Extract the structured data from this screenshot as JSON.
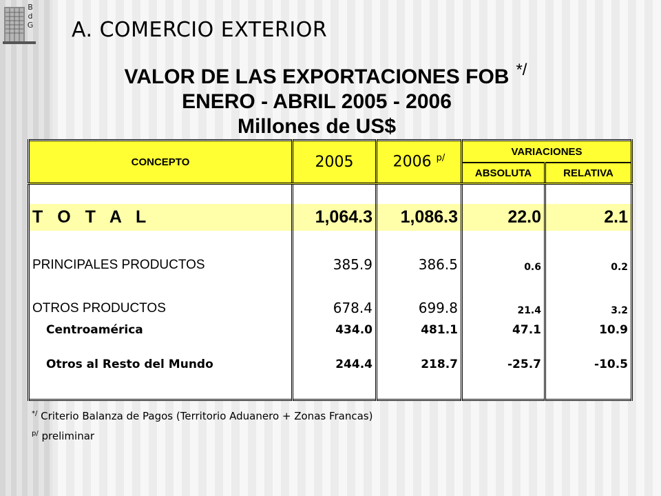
{
  "logo": {
    "letters": [
      "B",
      "d",
      "G"
    ]
  },
  "page": {
    "title": "A. COMERCIO EXTERIOR"
  },
  "report": {
    "title_line1": "VALOR DE LAS EXPORTACIONES FOB",
    "title_mark": "*/",
    "title_line2": "ENERO - ABRIL 2005 - 2006",
    "title_line3": "Millones de US$"
  },
  "table": {
    "headers": {
      "concepto": "CONCEPTO",
      "year1": "2005",
      "year2": "2006",
      "year2_mark": "p/",
      "variaciones": "VARIACIONES",
      "absoluta": "ABSOLUTA",
      "relativa": "RELATIVA"
    },
    "rows": [
      {
        "concepto": "T O T A L",
        "y2005": "1,064.3",
        "y2006": "1,086.3",
        "absoluta": "22.0",
        "relativa": "2.1"
      },
      {
        "concepto": "PRINCIPALES PRODUCTOS",
        "y2005": "385.9",
        "y2006": "386.5",
        "absoluta": "0.6",
        "relativa": "0.2"
      },
      {
        "concepto": "OTROS PRODUCTOS",
        "y2005": "678.4",
        "y2006": "699.8",
        "absoluta": "21.4",
        "relativa": "3.2"
      },
      {
        "concepto": "Centroamérica",
        "y2005": "434.0",
        "y2006": "481.1",
        "absoluta": "47.1",
        "relativa": "10.9"
      },
      {
        "concepto": "Otros al Resto del Mundo",
        "y2005": "244.4",
        "y2006": "218.7",
        "absoluta": "-25.7",
        "relativa": "-10.5"
      }
    ]
  },
  "notes": {
    "note1_mark": "*/",
    "note1_text": " Criterio Balanza de Pagos (Territorio Aduanero + Zonas Francas)",
    "note2_mark": "p/",
    "note2_text": " preliminar"
  },
  "colors": {
    "header_bg": "#ffff33",
    "total_row_bg": "#ffffaa"
  }
}
